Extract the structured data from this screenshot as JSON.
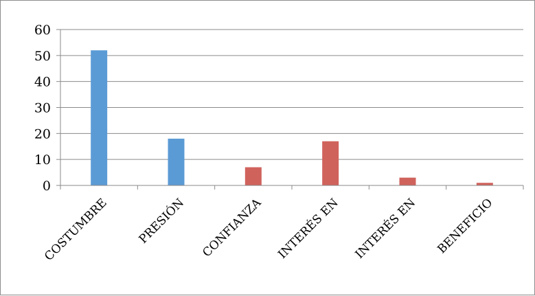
{
  "chart_data": {
    "type": "bar",
    "categories": [
      "COSTUMBRE",
      "PRESIÓN",
      "CONFIANZA",
      "INTERÉS EN",
      "INTERÉS EN",
      "BENEFICIO"
    ],
    "series": [
      {
        "values": [
          52,
          18,
          null,
          null,
          null,
          null
        ],
        "color": "#5B9BD5"
      },
      {
        "values": [
          null,
          null,
          7,
          17,
          3,
          1
        ],
        "color": "#D0625C"
      }
    ],
    "yticks": [
      0,
      10,
      20,
      30,
      40,
      50,
      60
    ],
    "ylim": [
      0,
      60
    ],
    "grid": true,
    "legend": "none",
    "title": "",
    "xlabel": "",
    "ylabel": ""
  }
}
